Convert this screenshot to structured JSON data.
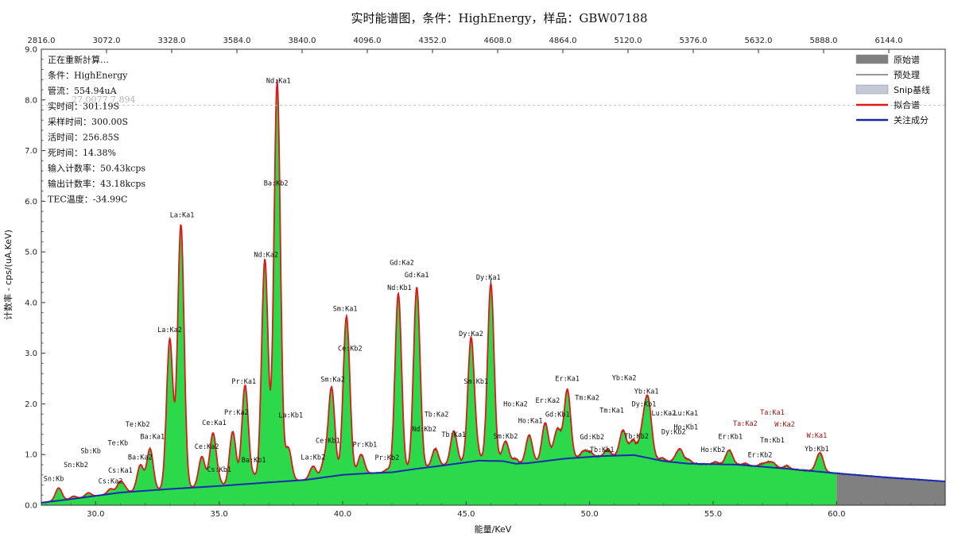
{
  "chart_data": {
    "type": "area",
    "title": "实时能谱图，条件：HighEnergy，样品：GBW07188",
    "xlabel": "能量/KeV",
    "ylabel": "计数率 - cps/(uA.KeV)",
    "xlim": [
      27.8,
      64.4
    ],
    "ylim": [
      0,
      9
    ],
    "x_ticks": [
      "30.0",
      "35.0",
      "40.0",
      "45.0",
      "50.0",
      "55.0",
      "60.0"
    ],
    "y_ticks": [
      "0.0",
      "1.0",
      "2.0",
      "3.0",
      "4.0",
      "5.0",
      "6.0",
      "7.0",
      "8.0",
      "9.0"
    ],
    "top_ticks": [
      "2816.0",
      "3072.0",
      "3328.0",
      "3584.0",
      "3840.0",
      "4096.0",
      "4352.0",
      "4608.0",
      "4864.0",
      "5120.0",
      "5376.0",
      "5632.0",
      "5888.0",
      "6144.0"
    ],
    "watermark": "27.0077 7.894",
    "status_lines": [
      "正在重新計算…",
      "条件：HighEnergy",
      "管流：554.94uA",
      "实时间：301.19S",
      "采样时间：300.00S",
      "活时间：256.85S",
      "死时间：14.38%",
      "输入计数率：50.43kcps",
      "输出计数率：43.18kcps",
      "TEC温度：-34.99C"
    ],
    "legend": [
      {
        "name": "原始谱",
        "color": "#808080",
        "kind": "box"
      },
      {
        "name": "预处理",
        "color": "#333333",
        "kind": "thin"
      },
      {
        "name": "Snip基线",
        "color": "#c3cad6",
        "kind": "box"
      },
      {
        "name": "拟合谱",
        "color": "#e01818",
        "kind": "line"
      },
      {
        "name": "关注成分",
        "color": "#1525b0",
        "kind": "line"
      }
    ],
    "colors": {
      "fill": "#2bd94a",
      "fit": "#e01818",
      "baseline": "#1a2bb0",
      "raw": "#808080"
    },
    "fit_end": 60.0,
    "baseline": [
      [
        27.8,
        0.05
      ],
      [
        29.0,
        0.12
      ],
      [
        31.0,
        0.25
      ],
      [
        33.0,
        0.32
      ],
      [
        35.0,
        0.38
      ],
      [
        37.0,
        0.45
      ],
      [
        38.5,
        0.5
      ],
      [
        40.0,
        0.6
      ],
      [
        41.0,
        0.63
      ],
      [
        42.0,
        0.65
      ],
      [
        43.0,
        0.72
      ],
      [
        44.0,
        0.78
      ],
      [
        45.5,
        0.88
      ],
      [
        46.5,
        0.87
      ],
      [
        47.0,
        0.82
      ],
      [
        47.5,
        0.83
      ],
      [
        49.0,
        0.92
      ],
      [
        50.5,
        0.97
      ],
      [
        51.8,
        0.99
      ],
      [
        53.0,
        0.87
      ],
      [
        54.0,
        0.82
      ],
      [
        56.0,
        0.8
      ],
      [
        58.0,
        0.72
      ],
      [
        60.0,
        0.63
      ],
      [
        62.0,
        0.55
      ],
      [
        64.4,
        0.47
      ]
    ],
    "peaks": [
      {
        "label": "Sn:Kb",
        "x": 28.5,
        "h": 0.25,
        "w": 0.13,
        "lx": 28.3,
        "ly": 0.48
      },
      {
        "label": "Sn:Kb2",
        "x": 29.1,
        "h": 0.05,
        "w": 0.12,
        "lx": 29.2,
        "ly": 0.75
      },
      {
        "label": "Sb:Kb",
        "x": 29.7,
        "h": 0.08,
        "w": 0.12,
        "lx": 29.8,
        "ly": 1.03
      },
      {
        "label": "Cs:Ka2",
        "x": 30.6,
        "h": 0.1,
        "w": 0.12,
        "lx": 30.6,
        "ly": 0.43
      },
      {
        "label": "Cs:Ka1",
        "x": 31.0,
        "h": 0.22,
        "w": 0.13,
        "lx": 31.0,
        "ly": 0.64
      },
      {
        "label": "Te:Kb",
        "x": 31.2,
        "h": 0.05,
        "w": 0.1,
        "lx": 30.9,
        "ly": 1.18
      },
      {
        "label": "Ba:Ka2",
        "x": 31.8,
        "h": 0.48,
        "w": 0.13,
        "lx": 31.8,
        "ly": 0.9
      },
      {
        "label": "Te:Kb2",
        "x": 31.9,
        "h": 0.05,
        "w": 0.1,
        "lx": 31.7,
        "ly": 1.55
      },
      {
        "label": "Ba:Ka1",
        "x": 32.2,
        "h": 0.82,
        "w": 0.13,
        "lx": 32.3,
        "ly": 1.31
      },
      {
        "label": "La:Ka2",
        "x": 33.0,
        "h": 2.95,
        "w": 0.13,
        "lx": 33.0,
        "ly": 3.42
      },
      {
        "label": "La:Ka1",
        "x": 33.45,
        "h": 5.2,
        "w": 0.13,
        "lx": 33.5,
        "ly": 5.68
      },
      {
        "label": "Ce:Ka2",
        "x": 34.3,
        "h": 0.6,
        "w": 0.13,
        "lx": 34.5,
        "ly": 1.11
      },
      {
        "label": "Ce:Ka1",
        "x": 34.75,
        "h": 1.05,
        "w": 0.13,
        "lx": 34.8,
        "ly": 1.58
      },
      {
        "label": "Cs:Kb1",
        "x": 35.0,
        "h": 0.08,
        "w": 0.1,
        "lx": 35.0,
        "ly": 0.66
      },
      {
        "label": "Pr:Ka2",
        "x": 35.55,
        "h": 1.05,
        "w": 0.13,
        "lx": 35.7,
        "ly": 1.79
      },
      {
        "label": "Pr:Ka1",
        "x": 36.05,
        "h": 1.95,
        "w": 0.13,
        "lx": 36.0,
        "ly": 2.4
      },
      {
        "label": "Ba:Kb1",
        "x": 36.4,
        "h": 0.14,
        "w": 0.12,
        "lx": 36.4,
        "ly": 0.85
      },
      {
        "label": "Nd:Ka2",
        "x": 36.85,
        "h": 4.4,
        "w": 0.13,
        "lx": 36.9,
        "ly": 4.9
      },
      {
        "label": "Ba:Kb2",
        "x": 37.3,
        "h": 0.2,
        "w": 0.12,
        "lx": 37.3,
        "ly": 6.31
      },
      {
        "label": "Nd:Ka1",
        "x": 37.35,
        "h": 7.7,
        "w": 0.13,
        "lx": 37.4,
        "ly": 8.33
      },
      {
        "label": "La:Kb1",
        "x": 37.8,
        "h": 0.65,
        "w": 0.13,
        "lx": 37.9,
        "ly": 1.73
      },
      {
        "label": "La:Kb2",
        "x": 38.8,
        "h": 0.25,
        "w": 0.13,
        "lx": 38.8,
        "ly": 0.9
      },
      {
        "label": "Ce:Kb1",
        "x": 39.25,
        "h": 0.3,
        "w": 0.12,
        "lx": 39.4,
        "ly": 1.23
      },
      {
        "label": "Sm:Ka2",
        "x": 39.55,
        "h": 1.75,
        "w": 0.13,
        "lx": 39.6,
        "ly": 2.44
      },
      {
        "label": "Sm:Ka1",
        "x": 40.15,
        "h": 3.05,
        "w": 0.13,
        "lx": 40.1,
        "ly": 3.83
      },
      {
        "label": "Ce:Kb2",
        "x": 40.3,
        "h": 0.2,
        "w": 0.1,
        "lx": 40.3,
        "ly": 3.05
      },
      {
        "label": "Pr:Kb1",
        "x": 40.75,
        "h": 0.38,
        "w": 0.13,
        "lx": 40.9,
        "ly": 1.15
      },
      {
        "label": "Pr:Kb2",
        "x": 41.8,
        "h": 0.06,
        "w": 0.1,
        "lx": 41.8,
        "ly": 0.89
      },
      {
        "label": "Nd:Kb1",
        "x": 42.25,
        "h": 3.45,
        "w": 0.13,
        "lx": 42.3,
        "ly": 4.25
      },
      {
        "label": "Gd:Ka2",
        "x": 42.35,
        "h": 0.1,
        "w": 0.1,
        "lx": 42.4,
        "ly": 4.74
      },
      {
        "label": "Gd:Ka1",
        "x": 43.0,
        "h": 3.55,
        "w": 0.13,
        "lx": 43.0,
        "ly": 4.5
      },
      {
        "label": "Nd:Kb2",
        "x": 43.15,
        "h": 0.1,
        "w": 0.1,
        "lx": 43.3,
        "ly": 1.46
      },
      {
        "label": "Tb:Ka2",
        "x": 43.75,
        "h": 0.35,
        "w": 0.13,
        "lx": 43.8,
        "ly": 1.75
      },
      {
        "label": "Tb:Ka1",
        "x": 44.5,
        "h": 0.65,
        "w": 0.13,
        "lx": 44.5,
        "ly": 1.35
      },
      {
        "label": "Dy:Ka2",
        "x": 45.2,
        "h": 2.45,
        "w": 0.13,
        "lx": 45.2,
        "ly": 3.34
      },
      {
        "label": "Sm:Kb1",
        "x": 45.45,
        "h": 0.15,
        "w": 0.1,
        "lx": 45.4,
        "ly": 2.4
      },
      {
        "label": "Dy:Ka1",
        "x": 46.0,
        "h": 3.5,
        "w": 0.13,
        "lx": 45.9,
        "ly": 4.45
      },
      {
        "label": "Sm:Kb2",
        "x": 46.6,
        "h": 0.4,
        "w": 0.13,
        "lx": 46.6,
        "ly": 1.32
      },
      {
        "label": "Ho:Ka2",
        "x": 47.0,
        "h": 0.1,
        "w": 0.1,
        "lx": 47.0,
        "ly": 1.95
      },
      {
        "label": "Ho:Ka1",
        "x": 47.55,
        "h": 0.55,
        "w": 0.13,
        "lx": 47.6,
        "ly": 1.62
      },
      {
        "label": "Er:Ka2",
        "x": 48.2,
        "h": 0.75,
        "w": 0.13,
        "lx": 48.3,
        "ly": 2.02
      },
      {
        "label": "Gd:Kb1",
        "x": 48.7,
        "h": 0.6,
        "w": 0.15,
        "lx": 48.7,
        "ly": 1.75
      },
      {
        "label": "Er:Ka1",
        "x": 49.1,
        "h": 1.35,
        "w": 0.13,
        "lx": 49.1,
        "ly": 2.45
      },
      {
        "label": "Tm:Ka2",
        "x": 49.75,
        "h": 0.12,
        "w": 0.12,
        "lx": 49.9,
        "ly": 2.08
      },
      {
        "label": "Gd:Kb2",
        "x": 50.0,
        "h": 0.1,
        "w": 0.12,
        "lx": 50.1,
        "ly": 1.3
      },
      {
        "label": "Tm:Ka1",
        "x": 50.7,
        "h": 0.08,
        "w": 0.12,
        "lx": 50.9,
        "ly": 1.83
      },
      {
        "label": "Tb:Kb1",
        "x": 50.75,
        "h": 0.05,
        "w": 0.1,
        "lx": 50.5,
        "ly": 1.05
      },
      {
        "label": "Yb:Ka2",
        "x": 51.35,
        "h": 0.5,
        "w": 0.13,
        "lx": 51.4,
        "ly": 2.47
      },
      {
        "label": "Tb:Kb2",
        "x": 51.75,
        "h": 0.3,
        "w": 0.13,
        "lx": 51.9,
        "ly": 1.32
      },
      {
        "label": "Yb:Ka1",
        "x": 52.35,
        "h": 1.2,
        "w": 0.15,
        "lx": 52.3,
        "ly": 2.2
      },
      {
        "label": "Dy:Kb1",
        "x": 52.1,
        "h": 0.3,
        "w": 0.12,
        "lx": 52.2,
        "ly": 1.95
      },
      {
        "label": "Lu:Ka2",
        "x": 52.95,
        "h": 0.06,
        "w": 0.1,
        "lx": 53.0,
        "ly": 1.77
      },
      {
        "label": "Dy:Kb2",
        "x": 53.6,
        "h": 0.2,
        "w": 0.15,
        "lx": 53.4,
        "ly": 1.4
      },
      {
        "label": "Lu:Ka1",
        "x": 53.7,
        "h": 0.1,
        "w": 0.1,
        "lx": 53.9,
        "ly": 1.77
      },
      {
        "label": "Ho:Kb1",
        "x": 54.0,
        "h": 0.08,
        "w": 0.12,
        "lx": 53.9,
        "ly": 1.5
      },
      {
        "label": "Ho:Kb2",
        "x": 55.1,
        "h": 0.05,
        "w": 0.1,
        "lx": 55.0,
        "ly": 1.05
      },
      {
        "label": "Er:Kb1",
        "x": 55.65,
        "h": 0.28,
        "w": 0.14,
        "lx": 55.7,
        "ly": 1.31
      },
      {
        "label": "Ta:Ka2",
        "x": 56.3,
        "h": 0.04,
        "w": 0.1,
        "lx": 56.3,
        "ly": 1.57,
        "red": true
      },
      {
        "label": "Tm:Kb1",
        "x": 57.4,
        "h": 0.1,
        "w": 0.14,
        "lx": 57.4,
        "ly": 1.24
      },
      {
        "label": "Ta:Ka1",
        "x": 57.2,
        "h": 0.05,
        "w": 0.1,
        "lx": 57.4,
        "ly": 1.79,
        "red": true
      },
      {
        "label": "Er:Kb2",
        "x": 57.0,
        "h": 0.06,
        "w": 0.12,
        "lx": 56.9,
        "ly": 0.95
      },
      {
        "label": "W:Ka2",
        "x": 57.98,
        "h": 0.06,
        "w": 0.1,
        "lx": 57.9,
        "ly": 1.55,
        "red": true
      },
      {
        "label": "W:Ka1",
        "x": 59.3,
        "h": 0.32,
        "w": 0.14,
        "lx": 59.2,
        "ly": 1.33,
        "red": true
      },
      {
        "label": "Yb:Kb1",
        "x": 59.4,
        "h": 0.08,
        "w": 0.1,
        "lx": 59.2,
        "ly": 1.07
      }
    ]
  }
}
